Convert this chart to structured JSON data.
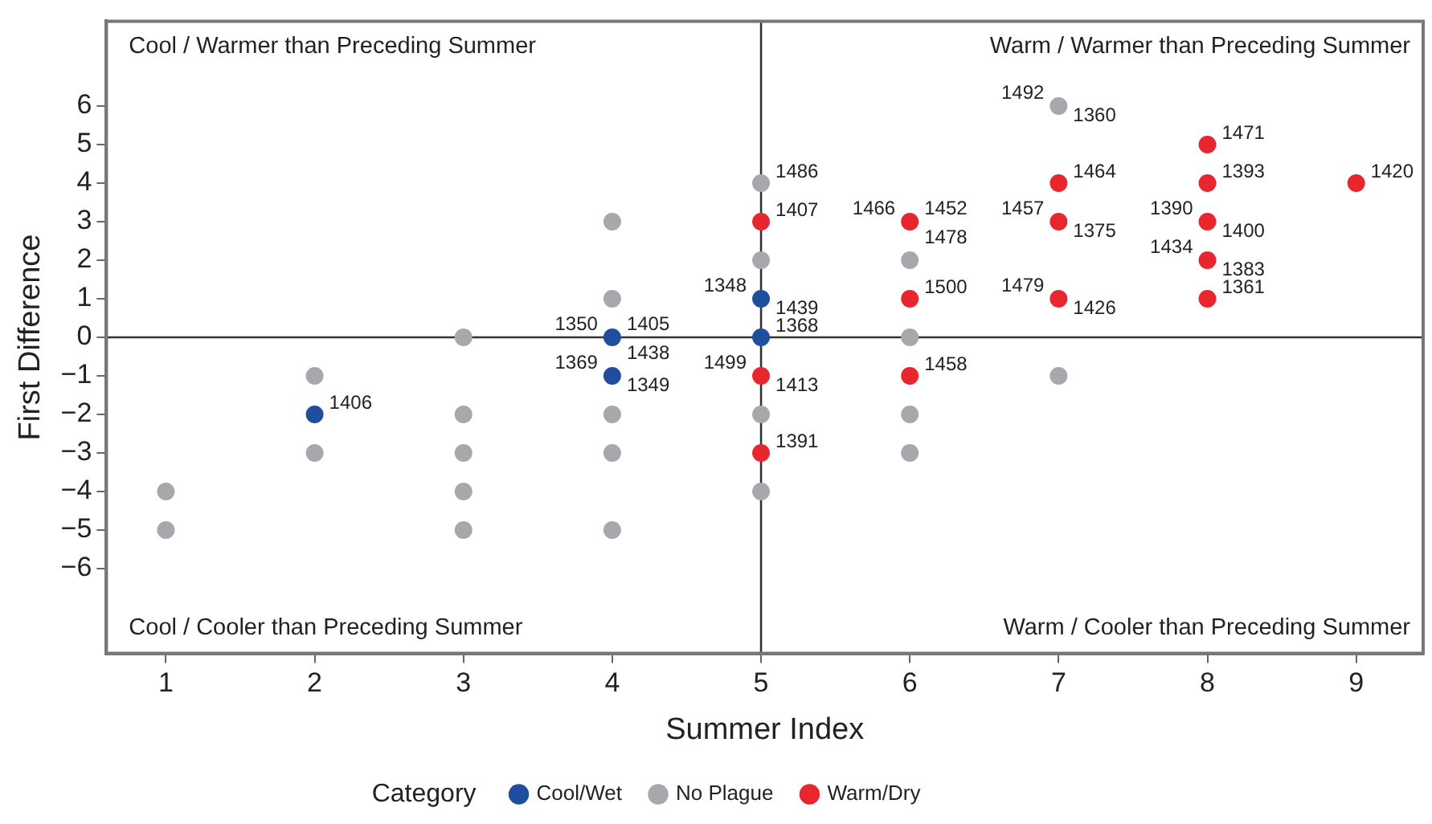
{
  "chart_data": {
    "type": "scatter",
    "xlabel": "Summer Index",
    "ylabel": "First Difference",
    "legend_title": "Category",
    "legend": "bottom",
    "grid": false,
    "marker": "circle",
    "xlim": [
      0.6,
      9.45
    ],
    "xticks": [
      1,
      2,
      3,
      4,
      5,
      6,
      7,
      8,
      9
    ],
    "ylim": [
      -8.2,
      8.2
    ],
    "yticks": [
      -6,
      -5,
      -4,
      -3,
      -2,
      -1,
      0,
      1,
      2,
      3,
      4,
      5,
      6
    ],
    "ref_lines": [
      {
        "axis": "x",
        "value": 5,
        "color": "#333333"
      },
      {
        "axis": "y",
        "value": 0,
        "color": "#333333"
      }
    ],
    "series": [
      {
        "name": "Cool/Wet",
        "color": "#1f4e9e",
        "x": [
          2,
          4,
          4,
          5,
          5
        ],
        "values": [
          -2,
          0,
          -1,
          1,
          0
        ]
      },
      {
        "name": "No Plague",
        "color": "#a7a8ab",
        "x": [
          1,
          1,
          2,
          2,
          3,
          3,
          3,
          3,
          3,
          4,
          4,
          4,
          4,
          4,
          5,
          5,
          5,
          5,
          6,
          6,
          6,
          6,
          7,
          7
        ],
        "values": [
          -4,
          -5,
          -1,
          -3,
          0,
          -2,
          -3,
          -4,
          -5,
          3,
          1,
          -2,
          -3,
          -5,
          4,
          2,
          -2,
          -4,
          2,
          0,
          -2,
          -3,
          6,
          -1
        ]
      },
      {
        "name": "Warm/Dry",
        "color": "#e8262d",
        "x": [
          5,
          5,
          5,
          6,
          6,
          6,
          7,
          7,
          7,
          8,
          8,
          8,
          8,
          8,
          9
        ],
        "values": [
          3,
          -1,
          -3,
          3,
          1,
          -1,
          4,
          3,
          1,
          5,
          4,
          3,
          2,
          1,
          4
        ]
      }
    ],
    "annotations": [
      "Cool / Warmer than Preceding Summer",
      "Warm / Warmer than Preceding Summer",
      "Cool / Cooler than Preceding Summer",
      "Warm / Cooler than Preceding Summer",
      {
        "text": "1406",
        "x": 2,
        "y": -2
      },
      {
        "text": "1350",
        "x": 4,
        "y": 0
      },
      {
        "text": "1405",
        "x": 4,
        "y": 0
      },
      {
        "text": "1438",
        "x": 4,
        "y": 0
      },
      {
        "text": "1369",
        "x": 4,
        "y": -1
      },
      {
        "text": "1349",
        "x": 4,
        "y": -1
      },
      {
        "text": "1486",
        "x": 5,
        "y": 4
      },
      {
        "text": "1407",
        "x": 5,
        "y": 3
      },
      {
        "text": "1348",
        "x": 5,
        "y": 1
      },
      {
        "text": "1439",
        "x": 5,
        "y": 1
      },
      {
        "text": "1368",
        "x": 5,
        "y": 0
      },
      {
        "text": "1499",
        "x": 5,
        "y": -1
      },
      {
        "text": "1413",
        "x": 5,
        "y": -1
      },
      {
        "text": "1391",
        "x": 5,
        "y": -3
      },
      {
        "text": "1466",
        "x": 6,
        "y": 3
      },
      {
        "text": "1452",
        "x": 6,
        "y": 3
      },
      {
        "text": "1478",
        "x": 6,
        "y": 3
      },
      {
        "text": "1500",
        "x": 6,
        "y": 1
      },
      {
        "text": "1458",
        "x": 6,
        "y": -1
      },
      {
        "text": "1492",
        "x": 7,
        "y": 6
      },
      {
        "text": "1360",
        "x": 7,
        "y": 6
      },
      {
        "text": "1464",
        "x": 7,
        "y": 4
      },
      {
        "text": "1457",
        "x": 7,
        "y": 3
      },
      {
        "text": "1375",
        "x": 7,
        "y": 3
      },
      {
        "text": "1479",
        "x": 7,
        "y": 1
      },
      {
        "text": "1426",
        "x": 7,
        "y": 1
      },
      {
        "text": "1471",
        "x": 8,
        "y": 5
      },
      {
        "text": "1393",
        "x": 8,
        "y": 4
      },
      {
        "text": "1390",
        "x": 8,
        "y": 3
      },
      {
        "text": "1400",
        "x": 8,
        "y": 3
      },
      {
        "text": "1434",
        "x": 8,
        "y": 2
      },
      {
        "text": "1383",
        "x": 8,
        "y": 2
      },
      {
        "text": "1361",
        "x": 8,
        "y": 1
      },
      {
        "text": "1420",
        "x": 9,
        "y": 4
      }
    ]
  }
}
